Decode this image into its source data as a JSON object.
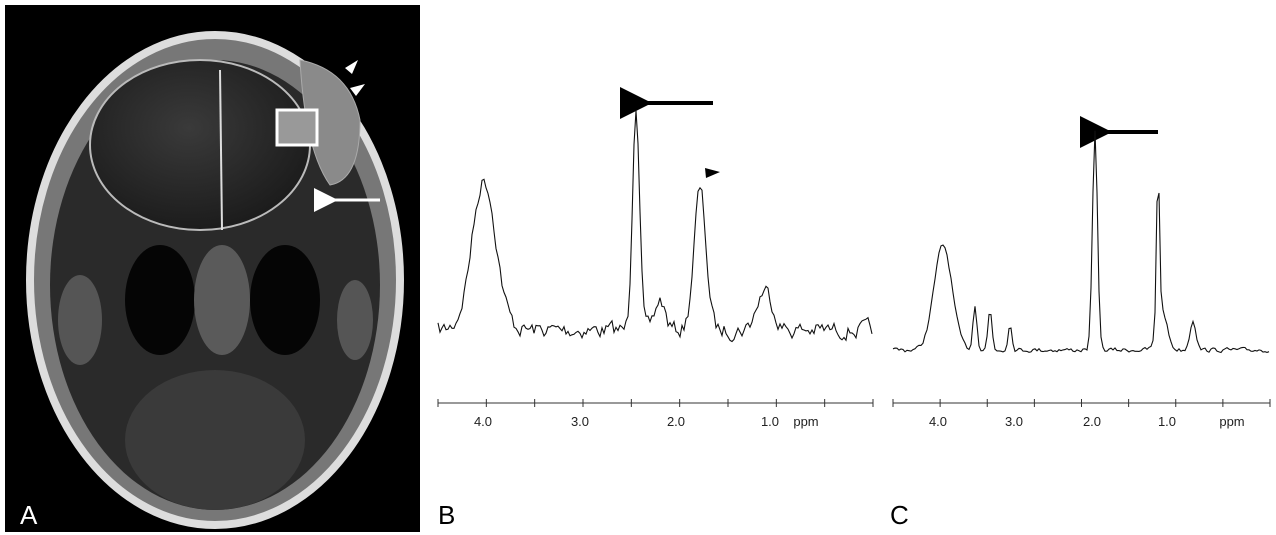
{
  "panels": [
    {
      "label": "A"
    },
    {
      "label": "B",
      "axis": {
        "ticks": [
          "4.0",
          "3.0",
          "2.0",
          "1.0"
        ],
        "unit": "ppm"
      }
    },
    {
      "label": "C",
      "axis": {
        "ticks": [
          "4.0",
          "3.0",
          "2.0",
          "1.0"
        ],
        "unit": "ppm"
      }
    }
  ]
}
